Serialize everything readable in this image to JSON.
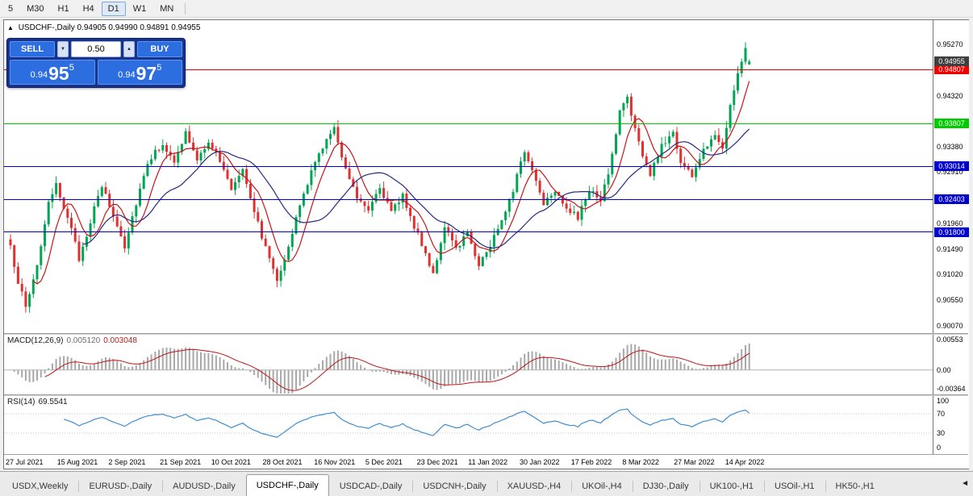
{
  "colors": {
    "up": "#00a651",
    "down": "#e03131",
    "ma_fast": "#c81414",
    "ma_slow": "#282882",
    "macd_hist": "#a8a8a8",
    "macd_signal": "#c01414",
    "rsi_line": "#3e8ed0"
  },
  "toolbar": {
    "items": [
      {
        "label": "5",
        "active": false
      },
      {
        "label": "M30",
        "active": false
      },
      {
        "label": "H1",
        "active": false
      },
      {
        "label": "H4",
        "active": false
      },
      {
        "label": "D1",
        "active": true
      },
      {
        "label": "W1",
        "active": false
      },
      {
        "label": "MN",
        "active": false
      }
    ]
  },
  "chart_header": {
    "collapse_icon": "▲",
    "symbol": "USDCHF-,Daily",
    "ohlc": "0.94905 0.94990 0.94891 0.94955"
  },
  "trade_panel": {
    "sell_label": "SELL",
    "buy_label": "BUY",
    "volume": "0.50",
    "volume_down_icon": "▼",
    "volume_up_icon": "▲",
    "sell_price": {
      "prefix": "0.94",
      "big": "95",
      "sup": "5"
    },
    "buy_price": {
      "prefix": "0.94",
      "big": "97",
      "sup": "5"
    }
  },
  "price_axis": {
    "ticks": [
      {
        "label": "0.95270",
        "price": 0.9527
      },
      {
        "label": "0.94320",
        "price": 0.9432
      },
      {
        "label": "0.93380",
        "price": 0.9338
      },
      {
        "label": "0.92910",
        "price": 0.9291
      },
      {
        "label": "0.91960",
        "price": 0.9196
      },
      {
        "label": "0.91490",
        "price": 0.9149
      },
      {
        "label": "0.91020",
        "price": 0.9102
      },
      {
        "label": "0.90550",
        "price": 0.9055
      },
      {
        "label": "0.90070",
        "price": 0.9007
      }
    ]
  },
  "current_price_tag": {
    "label": "0.94955",
    "price": 0.94955,
    "color": "#3f3f3f"
  },
  "levels": [
    {
      "label": "0.94807",
      "price": 0.94807,
      "color": "#ee0000"
    },
    {
      "label": "0.93807",
      "price": 0.93807,
      "color": "#00cc00"
    },
    {
      "label": "0.93014",
      "price": 0.93014,
      "color": "#0000cc"
    },
    {
      "label": "0.92403",
      "price": 0.92403,
      "color": "#0000cc"
    },
    {
      "label": "0.91800",
      "price": 0.918,
      "color": "#0000cc"
    }
  ],
  "macd_panel": {
    "title": "MACD(12,26,9)",
    "value_main": "0.005120",
    "value_signal": "0.003048",
    "axis_labels": [
      "0.00553",
      "0.00",
      "-0.00364"
    ]
  },
  "rsi_panel": {
    "title": "RSI(14)",
    "value": "69.5541",
    "axis_labels": [
      "100",
      "70",
      "30",
      "0"
    ]
  },
  "tabs": {
    "scroll_icon": "◄",
    "items": [
      {
        "label": "USDX,Weekly",
        "active": false
      },
      {
        "label": "EURUSD-,Daily",
        "active": false
      },
      {
        "label": "AUDUSD-,Daily",
        "active": false
      },
      {
        "label": "USDCHF-,Daily",
        "active": true
      },
      {
        "label": "USDCAD-,Daily",
        "active": false
      },
      {
        "label": "USDCNH-,Daily",
        "active": false
      },
      {
        "label": "XAUUSD-,H4",
        "active": false
      },
      {
        "label": "UKOil-,H4",
        "active": false
      },
      {
        "label": "DJ30-,Daily",
        "active": false
      },
      {
        "label": "UK100-,H1",
        "active": false
      },
      {
        "label": "USOil-,H1",
        "active": false
      },
      {
        "label": "HK50-,H1",
        "active": false
      }
    ]
  },
  "chart_data": {
    "type": "candlestick",
    "title": "USDCHF-,Daily",
    "ylim": [
      0.8993,
      0.9572
    ],
    "x_tick_labels": [
      "27 Jul 2021",
      "15 Aug 2021",
      "2 Sep 2021",
      "21 Sep 2021",
      "10 Oct 2021",
      "28 Oct 2021",
      "16 Nov 2021",
      "5 Dec 2021",
      "23 Dec 2021",
      "11 Jan 2022",
      "30 Jan 2022",
      "17 Feb 2022",
      "8 Mar 2022",
      "27 Mar 2022",
      "14 Apr 2022"
    ],
    "num_candles": 195,
    "noise": 0.0012,
    "wick": 0.0013,
    "anchors": [
      [
        0,
        0.915
      ],
      [
        2,
        0.909
      ],
      [
        4,
        0.904
      ],
      [
        7,
        0.912
      ],
      [
        10,
        0.923
      ],
      [
        12,
        0.9265
      ],
      [
        15,
        0.921
      ],
      [
        18,
        0.913
      ],
      [
        21,
        0.92
      ],
      [
        24,
        0.9265
      ],
      [
        27,
        0.921
      ],
      [
        30,
        0.9155
      ],
      [
        33,
        0.9235
      ],
      [
        36,
        0.931
      ],
      [
        40,
        0.9345
      ],
      [
        43,
        0.9305
      ],
      [
        46,
        0.9365
      ],
      [
        49,
        0.931
      ],
      [
        52,
        0.935
      ],
      [
        55,
        0.931
      ],
      [
        58,
        0.926
      ],
      [
        61,
        0.93
      ],
      [
        64,
        0.922
      ],
      [
        67,
        0.915
      ],
      [
        70,
        0.9095
      ],
      [
        73,
        0.915
      ],
      [
        76,
        0.923
      ],
      [
        79,
        0.929
      ],
      [
        82,
        0.934
      ],
      [
        85,
        0.937
      ],
      [
        88,
        0.93
      ],
      [
        91,
        0.9245
      ],
      [
        94,
        0.9225
      ],
      [
        97,
        0.9265
      ],
      [
        100,
        0.9215
      ],
      [
        103,
        0.925
      ],
      [
        106,
        0.919
      ],
      [
        109,
        0.914
      ],
      [
        111,
        0.9105
      ],
      [
        114,
        0.9185
      ],
      [
        117,
        0.915
      ],
      [
        120,
        0.918
      ],
      [
        123,
        0.912
      ],
      [
        126,
        0.9155
      ],
      [
        129,
        0.9205
      ],
      [
        132,
        0.926
      ],
      [
        135,
        0.933
      ],
      [
        137,
        0.9295
      ],
      [
        140,
        0.9235
      ],
      [
        143,
        0.926
      ],
      [
        146,
        0.9225
      ],
      [
        149,
        0.9205
      ],
      [
        152,
        0.926
      ],
      [
        155,
        0.9235
      ],
      [
        158,
        0.932
      ],
      [
        160,
        0.9405
      ],
      [
        162,
        0.943
      ],
      [
        164,
        0.937
      ],
      [
        166,
        0.932
      ],
      [
        168,
        0.9285
      ],
      [
        171,
        0.934
      ],
      [
        174,
        0.9365
      ],
      [
        176,
        0.931
      ],
      [
        179,
        0.9285
      ],
      [
        182,
        0.933
      ],
      [
        185,
        0.9365
      ],
      [
        187,
        0.9335
      ],
      [
        189,
        0.942
      ],
      [
        191,
        0.947
      ],
      [
        193,
        0.9525
      ],
      [
        194,
        0.94955
      ]
    ],
    "last_candle": {
      "open": 0.94905,
      "high": 0.9499,
      "low": 0.94891,
      "close": 0.94955
    },
    "overlays": [
      {
        "name": "ma-fast",
        "type": "sma",
        "period": 7,
        "color_key": "ma_fast"
      },
      {
        "name": "ma-slow",
        "type": "sma",
        "period": 20,
        "color_key": "ma_slow"
      }
    ],
    "indicators": [
      {
        "name": "MACD",
        "params": [
          12,
          26,
          9
        ],
        "current": [
          0.00512,
          0.003048
        ],
        "ylim": [
          -0.0043,
          0.0062
        ]
      },
      {
        "name": "RSI",
        "params": [
          14
        ],
        "current": 69.5541,
        "levels": [
          70,
          30
        ],
        "ylim": [
          0,
          100
        ]
      }
    ]
  }
}
